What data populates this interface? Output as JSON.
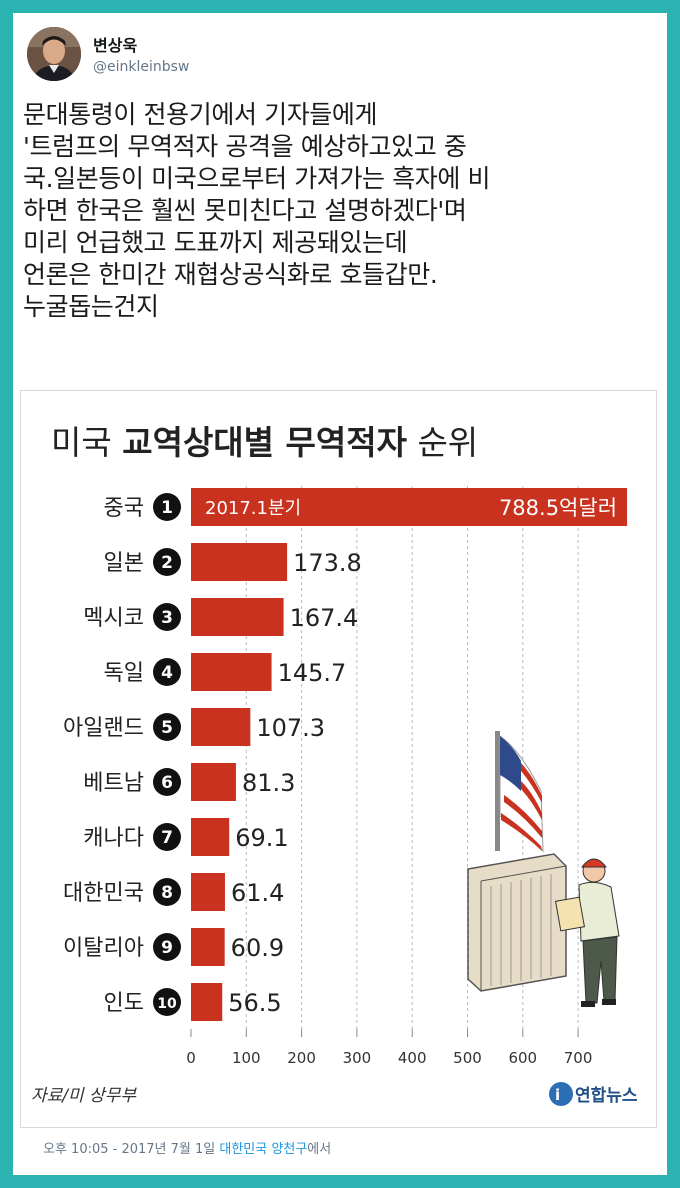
{
  "tweet": {
    "author_name": "변상욱",
    "author_handle": "@einkleinbsw",
    "text_lines": [
      "문대통령이 전용기에서 기자들에게",
      "'트럼프의 무역적자 공격을 예상하고있고 중",
      "국.일본등이 미국으로부터 가져가는 흑자에 비",
      "하면 한국은 훨씬 못미친다고 설명하겠다'며",
      "미리 언급했고 도표까지 제공돼있는데",
      "언론은 한미간 재협상공식화로 호들갑만.",
      "누굴돕는건지"
    ],
    "time": "오후 10:05 - 2017년 7월 1일",
    "location": "대한민국 양천구",
    "location_suffix": "에서"
  },
  "infographic": {
    "title_prefix": "미국 ",
    "title_bold": "교역상대별 무역적자",
    "title_suffix": " 순위",
    "period_label": "2017.1분기",
    "first_value_label": "788.5억달러",
    "source": "자료/미 상무부",
    "brand": "연합뉴스",
    "colors": {
      "bar": "#c8321f",
      "title": "#222222"
    }
  },
  "chart_data": {
    "type": "bar",
    "orientation": "horizontal",
    "categories": [
      "중국",
      "일본",
      "멕시코",
      "독일",
      "아일랜드",
      "베트남",
      "캐나다",
      "대한민국",
      "이탈리아",
      "인도"
    ],
    "ranks": [
      "1",
      "2",
      "3",
      "4",
      "5",
      "6",
      "7",
      "8",
      "9",
      "10"
    ],
    "values": [
      788.5,
      173.8,
      167.4,
      145.7,
      107.3,
      81.3,
      69.1,
      61.4,
      60.9,
      56.5
    ],
    "value_labels": [
      "788.5억달러",
      "173.8",
      "167.4",
      "145.7",
      "107.3",
      "81.3",
      "69.1",
      "61.4",
      "60.9",
      "56.5"
    ],
    "x_ticks": [
      0,
      100,
      200,
      300,
      400,
      500,
      600,
      700
    ],
    "xlim": [
      0,
      788.5
    ],
    "grid": true
  }
}
